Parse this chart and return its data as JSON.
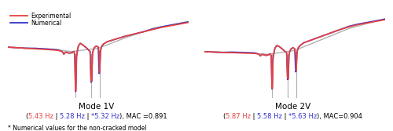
{
  "legend_experimental_color": "#e8413c",
  "legend_numerical_color": "#3333cc",
  "legend_gray_color": "#b0b0b0",
  "mode1_title": "Mode 1V",
  "mode2_title": "Mode 2V",
  "mode1_annotation_parts": [
    {
      "text": "(",
      "color": "#000000"
    },
    {
      "text": "5.43 Hz",
      "color": "#e8413c"
    },
    {
      "text": " | ",
      "color": "#000000"
    },
    {
      "text": "5.28 Hz",
      "color": "#3333cc"
    },
    {
      "text": " | ",
      "color": "#000000"
    },
    {
      "text": "*5.32 Hz",
      "color": "#3333cc"
    },
    {
      "text": "), MAC =0.891",
      "color": "#000000"
    }
  ],
  "mode2_annotation_parts": [
    {
      "text": "(",
      "color": "#000000"
    },
    {
      "text": "5.87 Hz",
      "color": "#e8413c"
    },
    {
      "text": " | ",
      "color": "#000000"
    },
    {
      "text": "5.58 Hz",
      "color": "#3333cc"
    },
    {
      "text": " | ",
      "color": "#000000"
    },
    {
      "text": "*5.63 Hz",
      "color": "#3333cc"
    },
    {
      "text": "), MAC=0.904",
      "color": "#000000"
    }
  ],
  "footer_text": "* Numerical values for the non-cracked model",
  "background_color": "#ffffff"
}
